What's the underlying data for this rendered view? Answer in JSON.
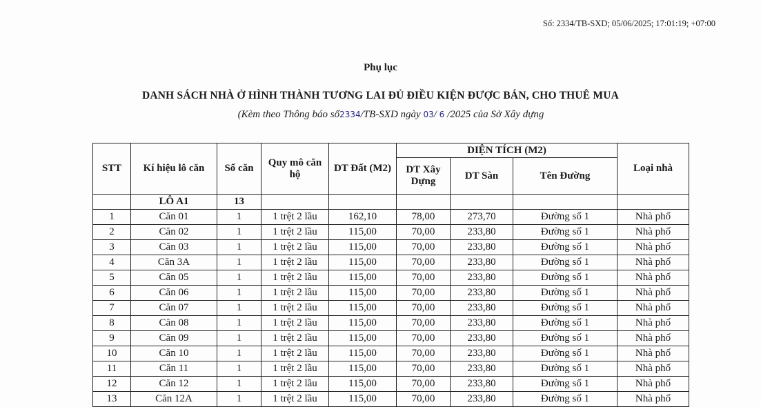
{
  "signature": "Số: 2334/TB-SXD; 05/06/2025; 17:01:19; +07:00",
  "title": "Phụ lục",
  "heading": "DANH SÁCH NHÀ Ở HÌNH THÀNH TƯƠNG LAI ĐỦ ĐIỀU KIỆN ĐƯỢC BÁN, CHO THUÊ MUA",
  "subheading": {
    "p1": "(Kèm theo Thông báo số",
    "num": "2334",
    "p2": "/TB-SXD ngày ",
    "day": "03",
    "p3": "/ ",
    "month": "6",
    "p4": " /2025 của Sở Xây dựng"
  },
  "table": {
    "headers": {
      "stt": "STT",
      "ki_hieu": "Kí hiệu lô căn",
      "so_can": "Số căn",
      "quy_mo": "Quy mô căn hộ",
      "dt_dat": "DT Đất (M2)",
      "dien_tich": "DIỆN TÍCH (M2)",
      "dt_xay": "DT Xây Dựng",
      "dt_san": "DT Sàn",
      "ten_duong": "Tên Đường",
      "loai_nha": "Loại nhà"
    },
    "lot": {
      "name": "LÔ A1",
      "count": "13"
    },
    "rows": [
      [
        "1",
        "Căn 01",
        "1",
        "1 trệt 2 lầu",
        "162,10",
        "78,00",
        "273,70",
        "Đường số 1",
        "Nhà phố"
      ],
      [
        "2",
        "Căn 02",
        "1",
        "1 trệt 2 lầu",
        "115,00",
        "70,00",
        "233,80",
        "Đường số 1",
        "Nhà phố"
      ],
      [
        "3",
        "Căn 03",
        "1",
        "1 trệt 2 lầu",
        "115,00",
        "70,00",
        "233,80",
        "Đường số 1",
        "Nhà phố"
      ],
      [
        "4",
        "Căn 3A",
        "1",
        "1 trệt 2 lầu",
        "115,00",
        "70,00",
        "233,80",
        "Đường số 1",
        "Nhà phố"
      ],
      [
        "5",
        "Căn 05",
        "1",
        "1 trệt 2 lầu",
        "115,00",
        "70,00",
        "233,80",
        "Đường số 1",
        "Nhà phố"
      ],
      [
        "6",
        "Căn 06",
        "1",
        "1 trệt 2 lầu",
        "115,00",
        "70,00",
        "233,80",
        "Đường số 1",
        "Nhà phố"
      ],
      [
        "7",
        "Căn 07",
        "1",
        "1 trệt 2 lầu",
        "115,00",
        "70,00",
        "233,80",
        "Đường số 1",
        "Nhà phố"
      ],
      [
        "8",
        "Căn 08",
        "1",
        "1 trệt 2 lầu",
        "115,00",
        "70,00",
        "233,80",
        "Đường số 1",
        "Nhà phố"
      ],
      [
        "9",
        "Căn 09",
        "1",
        "1 trệt 2 lầu",
        "115,00",
        "70,00",
        "233,80",
        "Đường số 1",
        "Nhà phố"
      ],
      [
        "10",
        "Căn 10",
        "1",
        "1 trệt 2 lầu",
        "115,00",
        "70,00",
        "233,80",
        "Đường số 1",
        "Nhà phố"
      ],
      [
        "11",
        "Căn 11",
        "1",
        "1 trệt 2 lầu",
        "115,00",
        "70,00",
        "233,80",
        "Đường số 1",
        "Nhà phố"
      ],
      [
        "12",
        "Căn 12",
        "1",
        "1 trệt 2 lầu",
        "115,00",
        "70,00",
        "233,80",
        "Đường số 1",
        "Nhà phố"
      ],
      [
        "13",
        "Căn 12A",
        "1",
        "1 trệt 2 lầu",
        "115,00",
        "70,00",
        "233,80",
        "Đường số 1",
        "Nhà phố"
      ]
    ]
  }
}
